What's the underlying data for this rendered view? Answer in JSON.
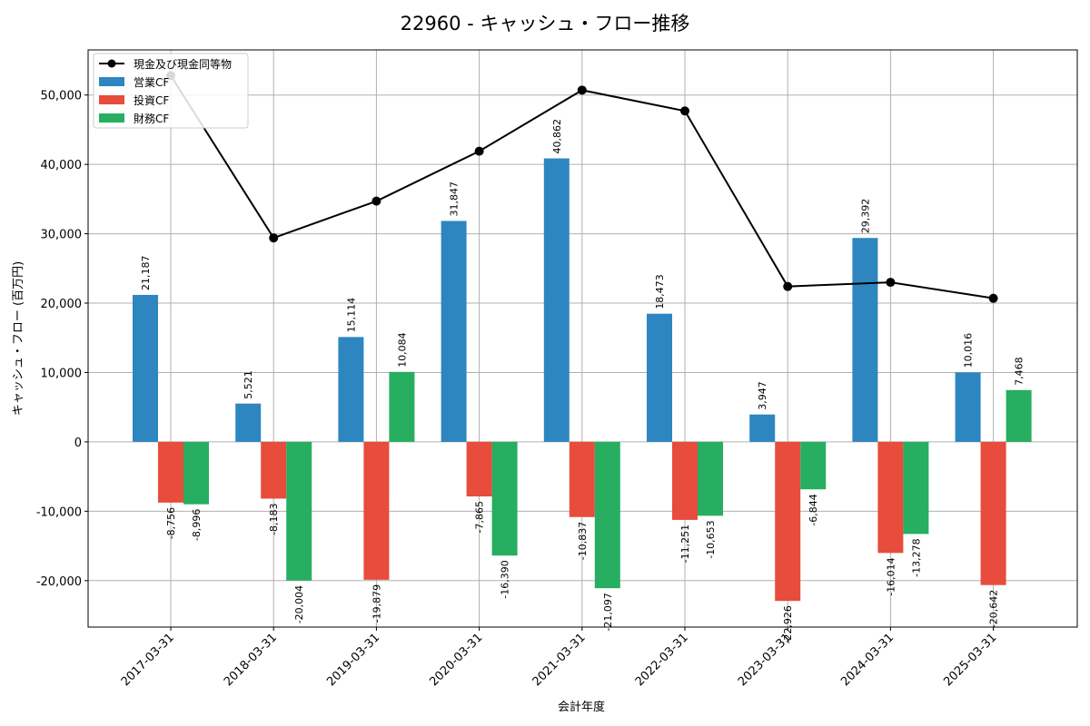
{
  "chart_data": {
    "type": "bar",
    "title": "22960 - キャッシュ・フロー推移",
    "xlabel": "会計年度",
    "ylabel": "キャッシュ・フロー (百万円)",
    "categories": [
      "2017-03-31",
      "2018-03-31",
      "2019-03-31",
      "2020-03-31",
      "2021-03-31",
      "2022-03-31",
      "2023-03-31",
      "2024-03-31",
      "2025-03-31"
    ],
    "ylim": [
      -26700,
      56500
    ],
    "yticks": [
      -20000,
      -10000,
      0,
      10000,
      20000,
      30000,
      40000,
      50000
    ],
    "ytick_labels": [
      "-20,000",
      "-10,000",
      "0",
      "10,000",
      "20,000",
      "30,000",
      "40,000",
      "50,000"
    ],
    "grid": true,
    "legend_position": "top-left",
    "series": [
      {
        "name": "営業CF",
        "type": "bar",
        "color": "#2e86c1",
        "values": [
          21187,
          5521,
          15114,
          31847,
          40862,
          18473,
          3947,
          29392,
          10016
        ],
        "labels": [
          "21,187",
          "5,521",
          "15,114",
          "31,847",
          "40,862",
          "18,473",
          "3,947",
          "29,392",
          "10,016"
        ]
      },
      {
        "name": "投資CF",
        "type": "bar",
        "color": "#e74c3c",
        "values": [
          -8756,
          -8183,
          -19879,
          -7865,
          -10837,
          -11251,
          -22926,
          -16014,
          -20642
        ],
        "labels": [
          "-8,756",
          "-8,183",
          "-19,879",
          "-7,865",
          "-10,837",
          "-11,251",
          "-22,926",
          "-16,014",
          "-20,642"
        ]
      },
      {
        "name": "財務CF",
        "type": "bar",
        "color": "#27ae60",
        "values": [
          -8996,
          -20004,
          10084,
          -16390,
          -21097,
          -10653,
          -6844,
          -13278,
          7468
        ],
        "labels": [
          "-8,996",
          "-20,004",
          "10,084",
          "-16,390",
          "-21,097",
          "-10,653",
          "-6,844",
          "-13,278",
          "7,468"
        ]
      },
      {
        "name": "現金及び現金同等物",
        "type": "line",
        "color": "#000000",
        "values": [
          52800,
          29400,
          34700,
          41900,
          50700,
          47700,
          22400,
          23000,
          20700
        ]
      }
    ]
  }
}
